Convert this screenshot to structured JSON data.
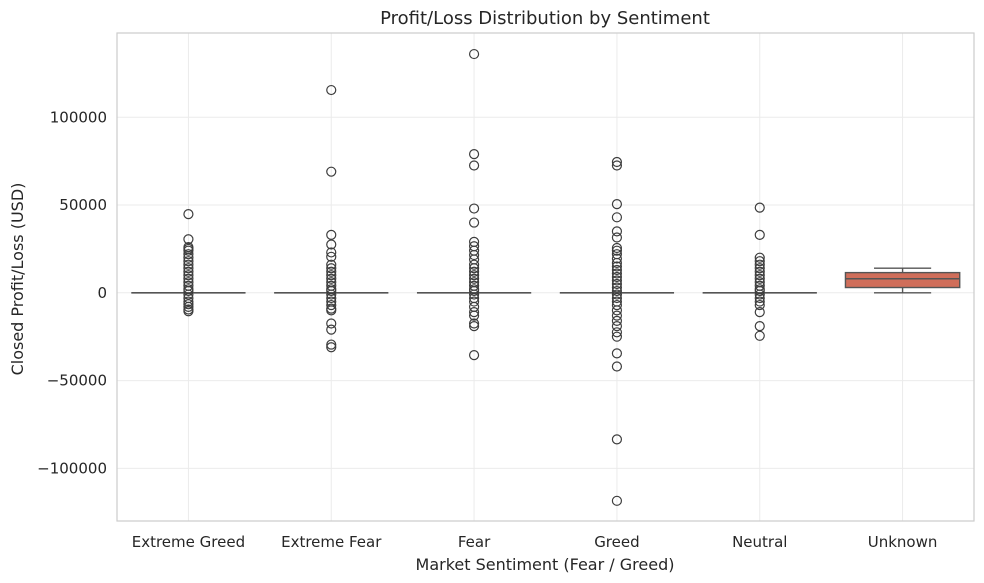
{
  "chart_data": {
    "type": "box",
    "title": "Profit/Loss Distribution by Sentiment",
    "xlabel": "Market Sentiment (Fear / Greed)",
    "ylabel": "Closed Profit/Loss (USD)",
    "ylim": [
      -130000,
      148000
    ],
    "yticks": [
      -100000,
      -50000,
      0,
      50000,
      100000
    ],
    "ytick_labels": [
      "−100000",
      "−50000",
      "0",
      "50000",
      "100000"
    ],
    "grid": true,
    "legend": "none",
    "categories": [
      "Extreme Greed",
      "Extreme Fear",
      "Fear",
      "Greed",
      "Neutral",
      "Unknown"
    ],
    "boxes": [
      {
        "category": "Extreme Greed",
        "q1": 0,
        "median": 0,
        "q3": 0,
        "whisker_low": 0,
        "whisker_high": 0,
        "outliers": [
          44800,
          30500,
          26000,
          25000,
          24000,
          22000,
          20000,
          18000,
          16000,
          14000,
          12000,
          10000,
          8000,
          6000,
          4000,
          2000,
          1000,
          -1000,
          -3000,
          -5000,
          -6500,
          -8000,
          -9500,
          -10500
        ]
      },
      {
        "category": "Extreme Fear",
        "q1": 0,
        "median": 0,
        "q3": 0,
        "whisker_low": 0,
        "whisker_high": 0,
        "outliers": [
          115500,
          69000,
          33000,
          27500,
          23000,
          20500,
          16000,
          14000,
          12000,
          10000,
          8000,
          6000,
          4000,
          2000,
          1000,
          -1000,
          -3000,
          -5000,
          -7000,
          -9000,
          -10000,
          -17500,
          -21000,
          -29500,
          -31000
        ]
      },
      {
        "category": "Fear",
        "q1": 0,
        "median": 0,
        "q3": 0,
        "whisker_low": 0,
        "whisker_high": 0,
        "outliers": [
          136000,
          79000,
          72500,
          48000,
          40000,
          29000,
          26500,
          24000,
          21500,
          19000,
          16000,
          14000,
          12000,
          10000,
          8000,
          6000,
          4000,
          2000,
          1000,
          -1000,
          -3000,
          -5000,
          -8000,
          -11000,
          -13000,
          -17500,
          -19000,
          -35500
        ]
      },
      {
        "category": "Greed",
        "q1": 0,
        "median": 0,
        "q3": 0,
        "whisker_low": 0,
        "whisker_high": 0,
        "outliers": [
          74500,
          72500,
          50500,
          43000,
          35000,
          31500,
          25500,
          24000,
          22000,
          19500,
          17000,
          15000,
          13000,
          11000,
          9000,
          7000,
          5000,
          3000,
          1000,
          -1000,
          -3000,
          -5000,
          -7000,
          -10000,
          -13000,
          -16000,
          -19000,
          -22500,
          -25000,
          -34500,
          -42000,
          -83500,
          -118500
        ]
      },
      {
        "category": "Neutral",
        "q1": 0,
        "median": 0,
        "q3": 0,
        "whisker_low": 0,
        "whisker_high": 0,
        "outliers": [
          48500,
          33000,
          20000,
          18000,
          16000,
          14000,
          12000,
          10000,
          8000,
          6000,
          4000,
          2000,
          1000,
          -1000,
          -3000,
          -5000,
          -7000,
          -11000,
          -19000,
          -24500
        ]
      },
      {
        "category": "Unknown",
        "q1": 3000,
        "median": 8000,
        "q3": 11500,
        "whisker_low": 0,
        "whisker_high": 14000,
        "outliers": []
      }
    ],
    "colors": [
      "#4c72b0",
      "#dd8452",
      "#55a868",
      "#c44e52",
      "#8172b3",
      "#d06e5a"
    ],
    "unknown_box_fill": "#d06e5a",
    "line_color": "#555555",
    "grid_color": "#ebebeb",
    "frame_color": "#cccccc"
  }
}
